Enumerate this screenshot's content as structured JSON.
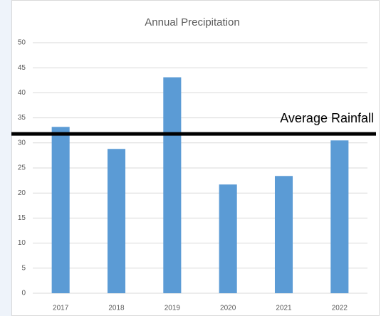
{
  "chart_data": {
    "type": "bar",
    "title": "Annual Precipitation",
    "categories": [
      "2017",
      "2018",
      "2019",
      "2020",
      "2021",
      "2022"
    ],
    "values": [
      33.2,
      28.8,
      43.1,
      21.7,
      23.4,
      30.5
    ],
    "color": "#5b9bd5",
    "ylim": [
      0,
      50
    ],
    "yticks": [
      0,
      5,
      10,
      15,
      20,
      25,
      30,
      35,
      40,
      45,
      50
    ],
    "grid": true,
    "annotations": [
      {
        "label": "Average Rainfall",
        "value": 31.8
      }
    ]
  }
}
